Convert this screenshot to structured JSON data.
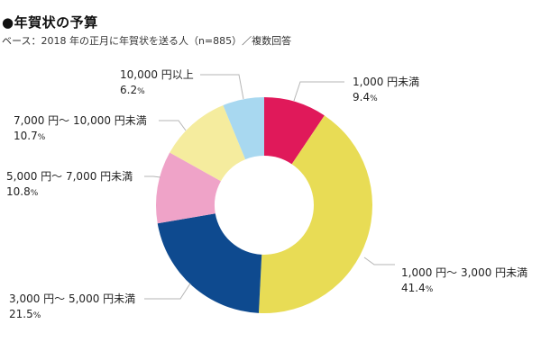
{
  "header": {
    "title": "●年賀状の予算",
    "subtitle": "ベース：2018 年の正月に年賀状を送る人（n=885）／複数回答"
  },
  "chart_data": {
    "type": "pie",
    "variant": "donut",
    "title": "●年賀状の予算",
    "subtitle": "ベース：2018 年の正月に年賀状を送る人（n=885）／複数回答",
    "unit": "%",
    "start_angle_deg": 0,
    "direction": "clockwise",
    "categories": [
      "1,000 円未満",
      "1,000 円〜 3,000 円未満",
      "3,000 円〜 5,000 円未満",
      "5,000 円〜 7,000 円未満",
      "7,000 円〜 10,000 円未満",
      "10,000 円以上"
    ],
    "values": [
      9.4,
      41.4,
      21.5,
      10.8,
      10.7,
      6.2
    ],
    "colors": [
      "#E0195A",
      "#E8DC55",
      "#0E4A8F",
      "#EFA3C8",
      "#F5EC9E",
      "#A8D8F0"
    ],
    "legend": "leader-line labels",
    "grid": false
  },
  "labels": [
    {
      "name": "1,000 円未満",
      "pct": "9.4"
    },
    {
      "name": "1,000 円〜 3,000 円未満",
      "pct": "41.4"
    },
    {
      "name": "3,000 円〜 5,000 円未満",
      "pct": "21.5"
    },
    {
      "name": "5,000 円〜 7,000 円未満",
      "pct": "10.8"
    },
    {
      "name": "7,000 円〜 10,000 円未満",
      "pct": "10.7"
    },
    {
      "name": "10,000 円以上",
      "pct": "6.2"
    }
  ],
  "pct_unit": "%"
}
